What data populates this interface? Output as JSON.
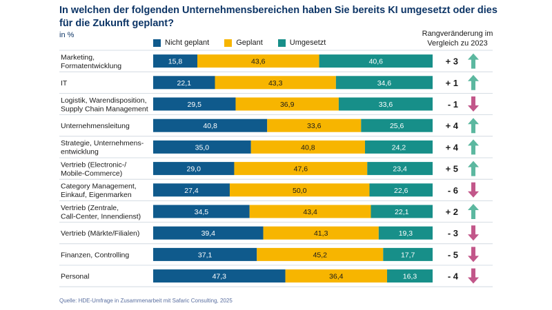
{
  "chart_data": {
    "type": "bar",
    "stacked": true,
    "orientation": "horizontal",
    "title": "In welchen der folgenden Unternehmensbereichen haben Sie bereits KI umgesetzt oder dies für die Zukunft geplant?",
    "unit": "in %",
    "rank_header": [
      "Rangveränderung im",
      "Vergleich zu 2023"
    ],
    "source": "Quelle: HDE-Umfrage in Zusammenarbeit mit Safaric Consulting, 2025",
    "legend_position": "top",
    "categories": [
      [
        "Marketing,",
        "Formatentwicklung"
      ],
      [
        "IT"
      ],
      [
        "Logistik, Warendisposition,",
        "Supply Chain Management"
      ],
      [
        "Unternehmensleitung"
      ],
      [
        "Strategie, Unternehmens-",
        "entwicklung"
      ],
      [
        "Vertrieb (Electronic-/",
        "Mobile-Commerce)"
      ],
      [
        "Category Management,",
        "Einkauf, Eigenmarken"
      ],
      [
        "Vertrieb (Zentrale,",
        "Call-Center, Innendienst)"
      ],
      [
        "Vertrieb (Märkte/Filialen)"
      ],
      [
        "Finanzen, Controlling"
      ],
      [
        "Personal"
      ]
    ],
    "series": [
      {
        "name": "Nicht geplant",
        "color": "#0f5a8c",
        "values": [
          15.8,
          22.1,
          29.5,
          40.8,
          35.0,
          29.0,
          27.4,
          34.5,
          39.4,
          37.1,
          47.3
        ],
        "labels": [
          "15,8",
          "22,1",
          "29,5",
          "40,8",
          "35,0",
          "29,0",
          "27,4",
          "34,5",
          "39,4",
          "37,1",
          "47,3"
        ]
      },
      {
        "name": "Geplant",
        "color": "#f7b500",
        "values": [
          43.6,
          43.3,
          36.9,
          33.6,
          40.8,
          47.6,
          50.0,
          43.4,
          41.3,
          45.2,
          36.4
        ],
        "labels": [
          "43,6",
          "43,3",
          "36,9",
          "33,6",
          "40,8",
          "47,6",
          "50,0",
          "43,4",
          "41,3",
          "45,2",
          "36,4"
        ]
      },
      {
        "name": "Umgesetzt",
        "color": "#178f89",
        "values": [
          40.6,
          34.6,
          33.6,
          25.6,
          24.2,
          23.4,
          22.6,
          22.1,
          19.3,
          17.7,
          16.3
        ],
        "labels": [
          "40,6",
          "34,6",
          "33,6",
          "25,6",
          "24,2",
          "23,4",
          "22,6",
          "22,1",
          "19,3",
          "17,7",
          "16,3"
        ]
      }
    ],
    "rank_change": {
      "values": [
        3,
        1,
        -1,
        4,
        4,
        5,
        -6,
        2,
        -3,
        -5,
        -4
      ],
      "labels": [
        "+ 3",
        "+ 1",
        "- 1",
        "+ 4",
        "+ 4",
        "+ 5",
        "- 6",
        "+ 2",
        "- 3",
        "- 5",
        "- 4"
      ],
      "up_color": "#5cb8a0",
      "down_color": "#c2578a"
    },
    "xlim": [
      0,
      100
    ]
  }
}
